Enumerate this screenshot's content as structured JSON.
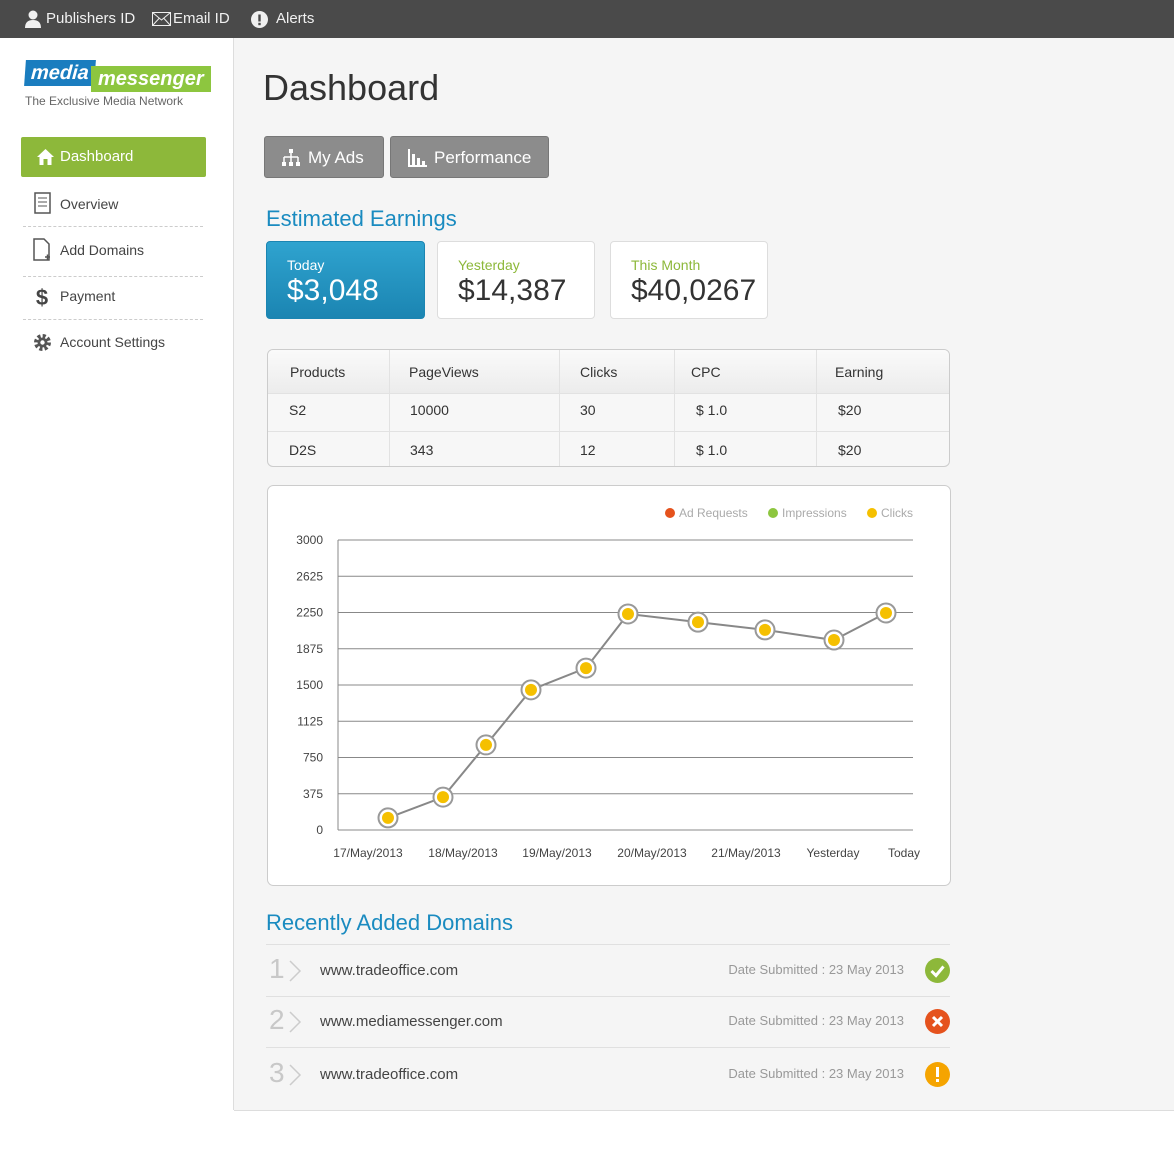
{
  "top_bar": {
    "items": [
      "Publishers ID",
      "Email ID",
      "Alerts"
    ]
  },
  "logo": {
    "word1": "media",
    "word2": "messenger",
    "tagline": "The Exclusive Media Network"
  },
  "sidebar": {
    "items": [
      "Dashboard",
      "Overview",
      "Add Domains",
      "Payment",
      "Account Settings"
    ]
  },
  "header": {
    "title": "Dashboard",
    "buttons": [
      "My Ads",
      "Performance"
    ]
  },
  "earnings": {
    "title": "Estimated Earnings",
    "cards": [
      {
        "label": "Today",
        "value": "$3,048"
      },
      {
        "label": "Yesterday",
        "value": "$14,387"
      },
      {
        "label": "This Month",
        "value": "$40,0267"
      }
    ]
  },
  "table": {
    "headers": [
      "Products",
      "PageViews",
      "Clicks",
      "CPC",
      "Earning"
    ],
    "rows": [
      [
        "S2",
        "10000",
        "30",
        "$ 1.0",
        "$20"
      ],
      [
        "D2S",
        "343",
        "12",
        "$ 1.0",
        "$20"
      ]
    ]
  },
  "chart_data": {
    "type": "line",
    "categories": [
      "17/May/2013",
      "18/May/2013",
      null,
      "19/May/2013",
      null,
      "20/May/2013",
      null,
      "21/May/2013",
      "Yesterday",
      "Today"
    ],
    "series": [
      {
        "name": "Ad Requests",
        "color": "#e5521d",
        "values": [
          null,
          null,
          null,
          null,
          null,
          null,
          null,
          null,
          null,
          null
        ]
      },
      {
        "name": "Impressions",
        "color": "#8dc63f",
        "values": [
          null,
          null,
          null,
          null,
          null,
          null,
          null,
          null,
          null,
          null
        ]
      },
      {
        "name": "Clicks",
        "color": "#f5c000",
        "values": [
          125,
          340,
          880,
          1450,
          1675,
          2235,
          2150,
          2070,
          1965,
          2245
        ]
      }
    ],
    "ylim": [
      0,
      3000
    ],
    "yticks": [
      0,
      375,
      750,
      1125,
      1500,
      1875,
      2250,
      2625,
      3000
    ],
    "grid": true,
    "legend": "top-right"
  },
  "domains": {
    "title": "Recently Added Domains",
    "rows": [
      {
        "number": "1",
        "domain": "www.tradeoffice.com",
        "date": "Date Submitted : 23 May 2013"
      },
      {
        "number": "2",
        "domain": "www.mediamessenger.com",
        "date": "Date Submitted : 23 May 2013"
      },
      {
        "number": "3",
        "domain": "www.tradeoffice.com",
        "date": "Date Submitted : 23 May 2013"
      }
    ]
  }
}
